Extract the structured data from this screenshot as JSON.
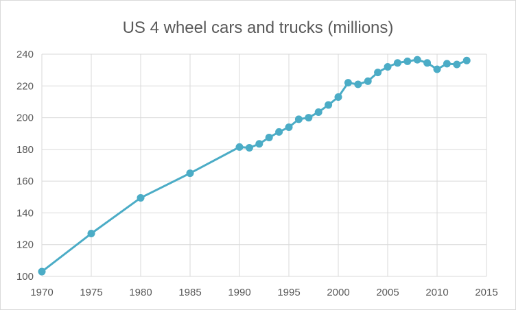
{
  "chart_data": {
    "type": "line",
    "title": "US 4 wheel cars and trucks (millions)",
    "xlabel": "",
    "ylabel": "",
    "xlim": [
      1970,
      2015
    ],
    "ylim": [
      100,
      240
    ],
    "x_ticks": [
      1970,
      1975,
      1980,
      1985,
      1990,
      1995,
      2000,
      2005,
      2010,
      2015
    ],
    "y_ticks": [
      100,
      120,
      140,
      160,
      180,
      200,
      220,
      240
    ],
    "grid": true,
    "legend": "none",
    "colors": {
      "series": "#4bacc6",
      "grid": "#d9d9d9",
      "text": "#595959"
    },
    "series": [
      {
        "x": [
          1970,
          1975,
          1980,
          1985,
          1990,
          1991,
          1992,
          1993,
          1994,
          1995,
          1996,
          1997,
          1998,
          1999,
          2000,
          2001,
          2002,
          2003,
          2004,
          2005,
          2006,
          2007,
          2008,
          2009,
          2010,
          2011,
          2012,
          2013
        ],
        "y": [
          103,
          127,
          149.5,
          165,
          181.5,
          181,
          183.5,
          187.5,
          191,
          194,
          199,
          200,
          203.5,
          208,
          213,
          222,
          221,
          223,
          228.5,
          232,
          234.5,
          235.5,
          236.5,
          234.5,
          230.5,
          234,
          233.5,
          236
        ]
      }
    ]
  }
}
